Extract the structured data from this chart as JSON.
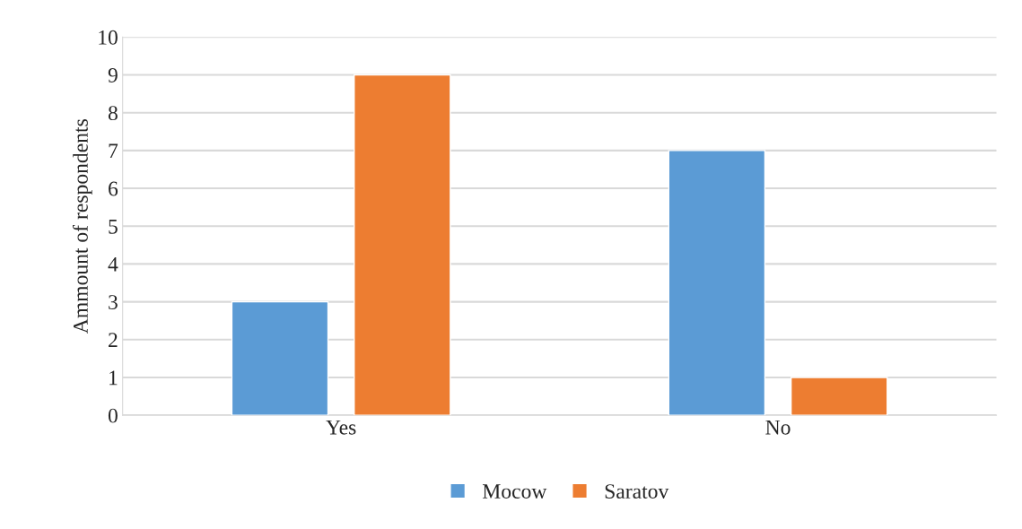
{
  "chart_data": {
    "type": "bar",
    "ylabel": "Ammount of respondents",
    "categories": [
      "Yes",
      "No"
    ],
    "series": [
      {
        "name": "Mocow",
        "color": "#5b9bd5",
        "values": [
          3,
          7
        ]
      },
      {
        "name": "Saratov",
        "color": "#ed7d31",
        "values": [
          9,
          1
        ]
      }
    ],
    "ylim": [
      0,
      10
    ],
    "yticks": [
      0,
      1,
      2,
      3,
      4,
      5,
      6,
      7,
      8,
      9,
      10
    ],
    "grid": "y",
    "legend": "bottom"
  }
}
